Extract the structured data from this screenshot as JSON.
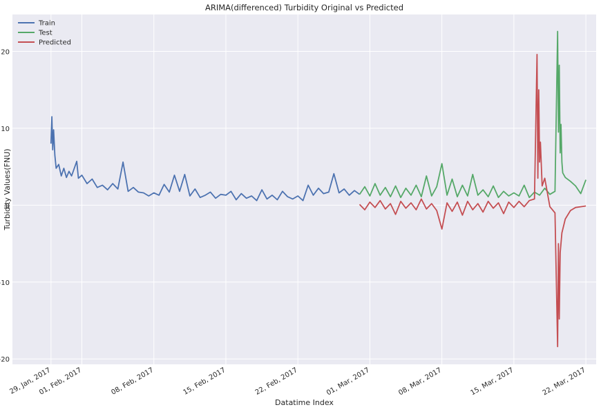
{
  "chart_data": {
    "type": "line",
    "title": "ARIMA(differenced) Turbidity Original vs Predicted",
    "xlabel": "Datatime Index",
    "ylabel": "Turbidity Values(FNU)",
    "x_unit": "date (2017)",
    "xlim": [
      "2017-01-25T06:00",
      "2017-03-23T00:00"
    ],
    "ylim": [
      -20.7,
      24.8
    ],
    "x_ticks": [
      {
        "date": "2017-01-29",
        "label": "29, Jan, 2017"
      },
      {
        "date": "2017-02-01",
        "label": "01, Feb, 2017"
      },
      {
        "date": "2017-02-08",
        "label": "08, Feb, 2017"
      },
      {
        "date": "2017-02-15",
        "label": "15, Feb, 2017"
      },
      {
        "date": "2017-02-22",
        "label": "22, Feb, 2017"
      },
      {
        "date": "2017-03-01",
        "label": "01, Mar, 2017"
      },
      {
        "date": "2017-03-08",
        "label": "08, Mar, 2017"
      },
      {
        "date": "2017-03-15",
        "label": "15, Mar, 2017"
      },
      {
        "date": "2017-03-22",
        "label": "22, Mar, 2017"
      }
    ],
    "y_ticks": [
      -20,
      -10,
      0,
      10,
      20
    ],
    "grid": true,
    "legend_position": "top-left",
    "series": [
      {
        "name": "Train",
        "color": "#4c72b0",
        "x": [
          "2017-01-29T00:00",
          "2017-01-29T02:00",
          "2017-01-29T04:00",
          "2017-01-29T06:00",
          "2017-01-29T09:00",
          "2017-01-29T12:00",
          "2017-01-29T18:00",
          "2017-01-30T00:00",
          "2017-01-30T06:00",
          "2017-01-30T12:00",
          "2017-01-30T18:00",
          "2017-01-31T00:00",
          "2017-01-31T12:00",
          "2017-01-31T16:00",
          "2017-02-01T00:00",
          "2017-02-01T12:00",
          "2017-02-02T00:00",
          "2017-02-02T12:00",
          "2017-02-03T00:00",
          "2017-02-03T12:00",
          "2017-02-04T00:00",
          "2017-02-04T12:00",
          "2017-02-05T00:00",
          "2017-02-05T12:00",
          "2017-02-06T00:00",
          "2017-02-06T12:00",
          "2017-02-07T00:00",
          "2017-02-07T12:00",
          "2017-02-08T00:00",
          "2017-02-08T12:00",
          "2017-02-09T00:00",
          "2017-02-09T12:00",
          "2017-02-10T00:00",
          "2017-02-10T12:00",
          "2017-02-11T00:00",
          "2017-02-11T12:00",
          "2017-02-12T00:00",
          "2017-02-12T12:00",
          "2017-02-13T00:00",
          "2017-02-13T12:00",
          "2017-02-14T00:00",
          "2017-02-14T12:00",
          "2017-02-15T00:00",
          "2017-02-15T12:00",
          "2017-02-16T00:00",
          "2017-02-16T12:00",
          "2017-02-17T00:00",
          "2017-02-17T12:00",
          "2017-02-18T00:00",
          "2017-02-18T12:00",
          "2017-02-19T00:00",
          "2017-02-19T12:00",
          "2017-02-20T00:00",
          "2017-02-20T12:00",
          "2017-02-21T00:00",
          "2017-02-21T12:00",
          "2017-02-22T00:00",
          "2017-02-22T12:00",
          "2017-02-23T00:00",
          "2017-02-23T12:00",
          "2017-02-24T00:00",
          "2017-02-24T12:00",
          "2017-02-25T00:00",
          "2017-02-25T12:00",
          "2017-02-26T00:00",
          "2017-02-26T12:00",
          "2017-02-27T00:00",
          "2017-02-27T12:00",
          "2017-02-28T00:00"
        ],
        "y": [
          8.0,
          11.5,
          7.2,
          9.8,
          6.5,
          4.8,
          5.3,
          3.8,
          4.8,
          3.6,
          4.4,
          3.8,
          5.7,
          3.5,
          3.9,
          2.8,
          3.4,
          2.3,
          2.6,
          2.0,
          2.8,
          2.1,
          5.6,
          1.8,
          2.3,
          1.7,
          1.6,
          1.2,
          1.6,
          1.3,
          2.7,
          1.7,
          3.9,
          1.8,
          4.0,
          1.2,
          2.1,
          1.0,
          1.3,
          1.7,
          0.9,
          1.4,
          1.3,
          1.8,
          0.7,
          1.5,
          0.9,
          1.2,
          0.6,
          2.0,
          0.8,
          1.3,
          0.7,
          1.8,
          1.1,
          0.8,
          1.2,
          0.6,
          2.6,
          1.3,
          2.2,
          1.5,
          1.7,
          4.1,
          1.6,
          2.1,
          1.3,
          1.9,
          1.4
        ]
      },
      {
        "name": "Test",
        "color": "#55a868",
        "x": [
          "2017-02-28T00:00",
          "2017-02-28T12:00",
          "2017-03-01T00:00",
          "2017-03-01T12:00",
          "2017-03-02T00:00",
          "2017-03-02T12:00",
          "2017-03-03T00:00",
          "2017-03-03T12:00",
          "2017-03-04T00:00",
          "2017-03-04T12:00",
          "2017-03-05T00:00",
          "2017-03-05T12:00",
          "2017-03-06T00:00",
          "2017-03-06T12:00",
          "2017-03-07T00:00",
          "2017-03-07T12:00",
          "2017-03-08T00:00",
          "2017-03-08T12:00",
          "2017-03-09T00:00",
          "2017-03-09T12:00",
          "2017-03-10T00:00",
          "2017-03-10T12:00",
          "2017-03-11T00:00",
          "2017-03-11T12:00",
          "2017-03-12T00:00",
          "2017-03-12T12:00",
          "2017-03-13T00:00",
          "2017-03-13T12:00",
          "2017-03-14T00:00",
          "2017-03-14T12:00",
          "2017-03-15T00:00",
          "2017-03-15T12:00",
          "2017-03-16T00:00",
          "2017-03-16T12:00",
          "2017-03-17T00:00",
          "2017-03-17T12:00",
          "2017-03-18T00:00",
          "2017-03-18T12:00",
          "2017-03-19T00:00",
          "2017-03-19T06:00",
          "2017-03-19T08:00",
          "2017-03-19T10:00",
          "2017-03-19T12:00",
          "2017-03-19T14:00",
          "2017-03-19T16:00",
          "2017-03-19T18:00",
          "2017-03-20T00:00",
          "2017-03-20T12:00",
          "2017-03-21T00:00",
          "2017-03-21T12:00",
          "2017-03-22T00:00"
        ],
        "y": [
          1.4,
          2.4,
          1.2,
          2.8,
          1.3,
          2.3,
          1.1,
          2.5,
          1.0,
          2.2,
          1.3,
          2.6,
          1.1,
          3.8,
          1.2,
          2.4,
          5.4,
          1.3,
          3.4,
          1.1,
          2.6,
          1.2,
          4.0,
          1.3,
          2.0,
          1.1,
          2.5,
          1.0,
          1.8,
          1.2,
          1.6,
          1.2,
          2.6,
          1.0,
          1.7,
          1.3,
          2.2,
          1.4,
          1.8,
          22.6,
          9.5,
          18.2,
          6.8,
          10.5,
          5.6,
          4.2,
          3.6,
          3.1,
          2.5,
          1.5,
          3.3
        ]
      },
      {
        "name": "Predicted",
        "color": "#c44e52",
        "x": [
          "2017-02-28T00:00",
          "2017-02-28T12:00",
          "2017-03-01T00:00",
          "2017-03-01T12:00",
          "2017-03-02T00:00",
          "2017-03-02T12:00",
          "2017-03-03T00:00",
          "2017-03-03T12:00",
          "2017-03-04T00:00",
          "2017-03-04T12:00",
          "2017-03-05T00:00",
          "2017-03-05T12:00",
          "2017-03-06T00:00",
          "2017-03-06T12:00",
          "2017-03-07T00:00",
          "2017-03-07T12:00",
          "2017-03-08T00:00",
          "2017-03-08T12:00",
          "2017-03-09T00:00",
          "2017-03-09T12:00",
          "2017-03-10T00:00",
          "2017-03-10T12:00",
          "2017-03-11T00:00",
          "2017-03-11T12:00",
          "2017-03-12T00:00",
          "2017-03-12T12:00",
          "2017-03-13T00:00",
          "2017-03-13T12:00",
          "2017-03-14T00:00",
          "2017-03-14T12:00",
          "2017-03-15T00:00",
          "2017-03-15T12:00",
          "2017-03-16T00:00",
          "2017-03-16T12:00",
          "2017-03-17T00:00",
          "2017-03-17T06:00",
          "2017-03-17T08:00",
          "2017-03-17T10:00",
          "2017-03-17T12:00",
          "2017-03-17T14:00",
          "2017-03-17T18:00",
          "2017-03-18T00:00",
          "2017-03-18T12:00",
          "2017-03-19T00:00",
          "2017-03-19T06:00",
          "2017-03-19T08:00",
          "2017-03-19T10:00",
          "2017-03-19T12:00",
          "2017-03-19T16:00",
          "2017-03-20T00:00",
          "2017-03-20T12:00",
          "2017-03-21T00:00",
          "2017-03-21T12:00",
          "2017-03-22T00:00"
        ],
        "y": [
          0.1,
          -0.6,
          0.4,
          -0.3,
          0.6,
          -0.5,
          0.2,
          -1.2,
          0.5,
          -0.4,
          0.3,
          -0.6,
          0.8,
          -0.5,
          0.2,
          -0.7,
          -3.1,
          0.3,
          -0.8,
          0.4,
          -1.3,
          0.5,
          -0.6,
          0.2,
          -0.9,
          0.5,
          -0.4,
          0.3,
          -1.1,
          0.4,
          -0.3,
          0.5,
          -0.2,
          0.6,
          0.8,
          19.6,
          3.5,
          15.0,
          5.6,
          8.2,
          2.5,
          3.5,
          -0.2,
          -1.0,
          -18.4,
          -5.0,
          -14.8,
          -6.2,
          -3.6,
          -1.8,
          -0.7,
          -0.3,
          -0.2,
          -0.1
        ]
      }
    ]
  }
}
